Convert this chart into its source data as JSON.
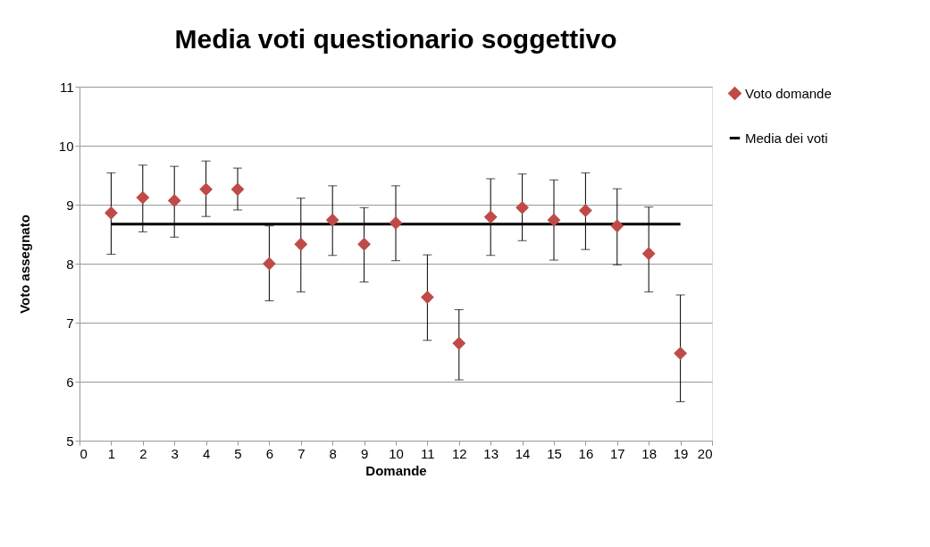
{
  "chart_data": {
    "type": "scatter",
    "title": "Media voti questionario soggettivo",
    "xlabel": "Domande",
    "ylabel": "Voto assegnato",
    "x": [
      1,
      2,
      3,
      4,
      5,
      6,
      7,
      8,
      9,
      10,
      11,
      12,
      13,
      14,
      15,
      16,
      17,
      18,
      19
    ],
    "xlim": [
      0,
      20
    ],
    "xticks": [
      0,
      1,
      2,
      3,
      4,
      5,
      6,
      7,
      8,
      9,
      10,
      11,
      12,
      13,
      14,
      15,
      16,
      17,
      18,
      19,
      20
    ],
    "ylim": [
      5,
      11
    ],
    "yticks": [
      5,
      6,
      7,
      8,
      9,
      10,
      11
    ],
    "grid": "y",
    "legend": "right",
    "series": [
      {
        "name": "Voto domande",
        "color": "#be4b48",
        "marker": "diamond",
        "values": [
          8.86,
          9.12,
          9.07,
          9.26,
          9.26,
          8.0,
          8.33,
          8.74,
          8.33,
          8.69,
          7.43,
          6.65,
          8.79,
          8.95,
          8.74,
          8.9,
          8.64,
          8.17,
          6.48
        ],
        "errors": [
          [
            8.16,
            9.54
          ],
          [
            8.54,
            9.67
          ],
          [
            8.45,
            9.65
          ],
          [
            8.8,
            9.74
          ],
          [
            8.91,
            9.62
          ],
          [
            7.37,
            8.64
          ],
          [
            7.52,
            9.11
          ],
          [
            8.14,
            9.32
          ],
          [
            7.69,
            8.95
          ],
          [
            8.05,
            9.32
          ],
          [
            6.7,
            8.15
          ],
          [
            6.03,
            7.22
          ],
          [
            8.14,
            9.44
          ],
          [
            8.39,
            9.52
          ],
          [
            8.06,
            9.42
          ],
          [
            8.24,
            9.54
          ],
          [
            7.98,
            9.27
          ],
          [
            7.52,
            8.96
          ],
          [
            5.66,
            7.47
          ]
        ]
      },
      {
        "name": "Media dei voti",
        "type": "line",
        "color": "#000000",
        "x": [
          1,
          19
        ],
        "values": [
          8.67,
          8.67
        ],
        "marker": "none",
        "line_style": "solid"
      }
    ]
  }
}
